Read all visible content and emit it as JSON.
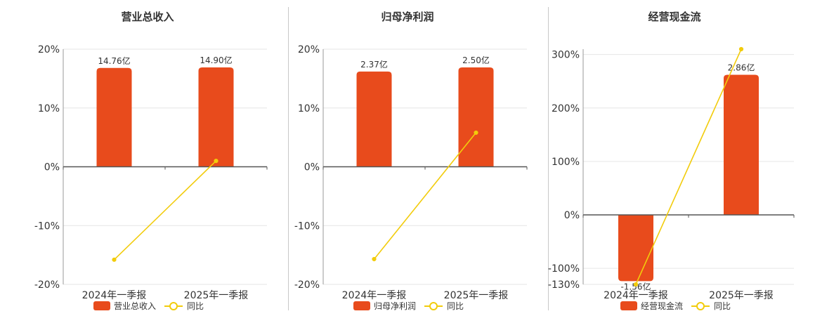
{
  "colors": {
    "bar": "#e84b1c",
    "line": "#f2cc0c",
    "grid": "#e6e6e6",
    "axis": "#555555"
  },
  "chart_data": [
    {
      "type": "bar",
      "title": "营业总收入",
      "categories": [
        "2024年一季报",
        "2025年一季报"
      ],
      "series": [
        {
          "name": "营业总收入",
          "type": "bar",
          "values": [
            16.8,
            16.9
          ],
          "labels": [
            "14.76亿",
            "14.90亿"
          ]
        },
        {
          "name": "同比",
          "type": "line",
          "values": [
            -15.8,
            1.0
          ]
        }
      ],
      "ylim": [
        -20,
        20
      ],
      "yticks": [
        {
          "value": 20,
          "label": "20%"
        },
        {
          "value": 10,
          "label": "10%"
        },
        {
          "value": 0,
          "label": "0%"
        },
        {
          "value": -10,
          "label": "-10%"
        },
        {
          "value": -20,
          "label": "-20%"
        }
      ],
      "grid": true,
      "legend": "bottom"
    },
    {
      "type": "bar",
      "title": "归母净利润",
      "categories": [
        "2024年一季报",
        "2025年一季报"
      ],
      "series": [
        {
          "name": "归母净利润",
          "type": "bar",
          "values": [
            16.2,
            16.9
          ],
          "labels": [
            "2.37亿",
            "2.50亿"
          ]
        },
        {
          "name": "同比",
          "type": "line",
          "values": [
            -15.7,
            5.8
          ]
        }
      ],
      "ylim": [
        -20,
        20
      ],
      "yticks": [
        {
          "value": 20,
          "label": "20%"
        },
        {
          "value": 10,
          "label": "10%"
        },
        {
          "value": 0,
          "label": "0%"
        },
        {
          "value": -10,
          "label": "-10%"
        },
        {
          "value": -20,
          "label": "-20%"
        }
      ],
      "grid": true,
      "legend": "bottom"
    },
    {
      "type": "bar",
      "title": "经营现金流",
      "categories": [
        "2024年一季报",
        "2025年一季报"
      ],
      "series": [
        {
          "name": "经营现金流",
          "type": "bar",
          "values": [
            -124,
            262
          ],
          "labels": [
            "-1.56亿",
            "2.86亿"
          ]
        },
        {
          "name": "同比",
          "type": "line",
          "values": [
            -130,
            310
          ]
        }
      ],
      "ylim": [
        -130,
        310
      ],
      "yticks": [
        {
          "value": 300,
          "label": "300%"
        },
        {
          "value": 200,
          "label": "200%"
        },
        {
          "value": 100,
          "label": "100%"
        },
        {
          "value": 0,
          "label": "0%"
        },
        {
          "value": -100,
          "label": "-100%"
        },
        {
          "value": -130,
          "label": "-130%"
        }
      ],
      "grid": true,
      "legend": "bottom"
    }
  ]
}
